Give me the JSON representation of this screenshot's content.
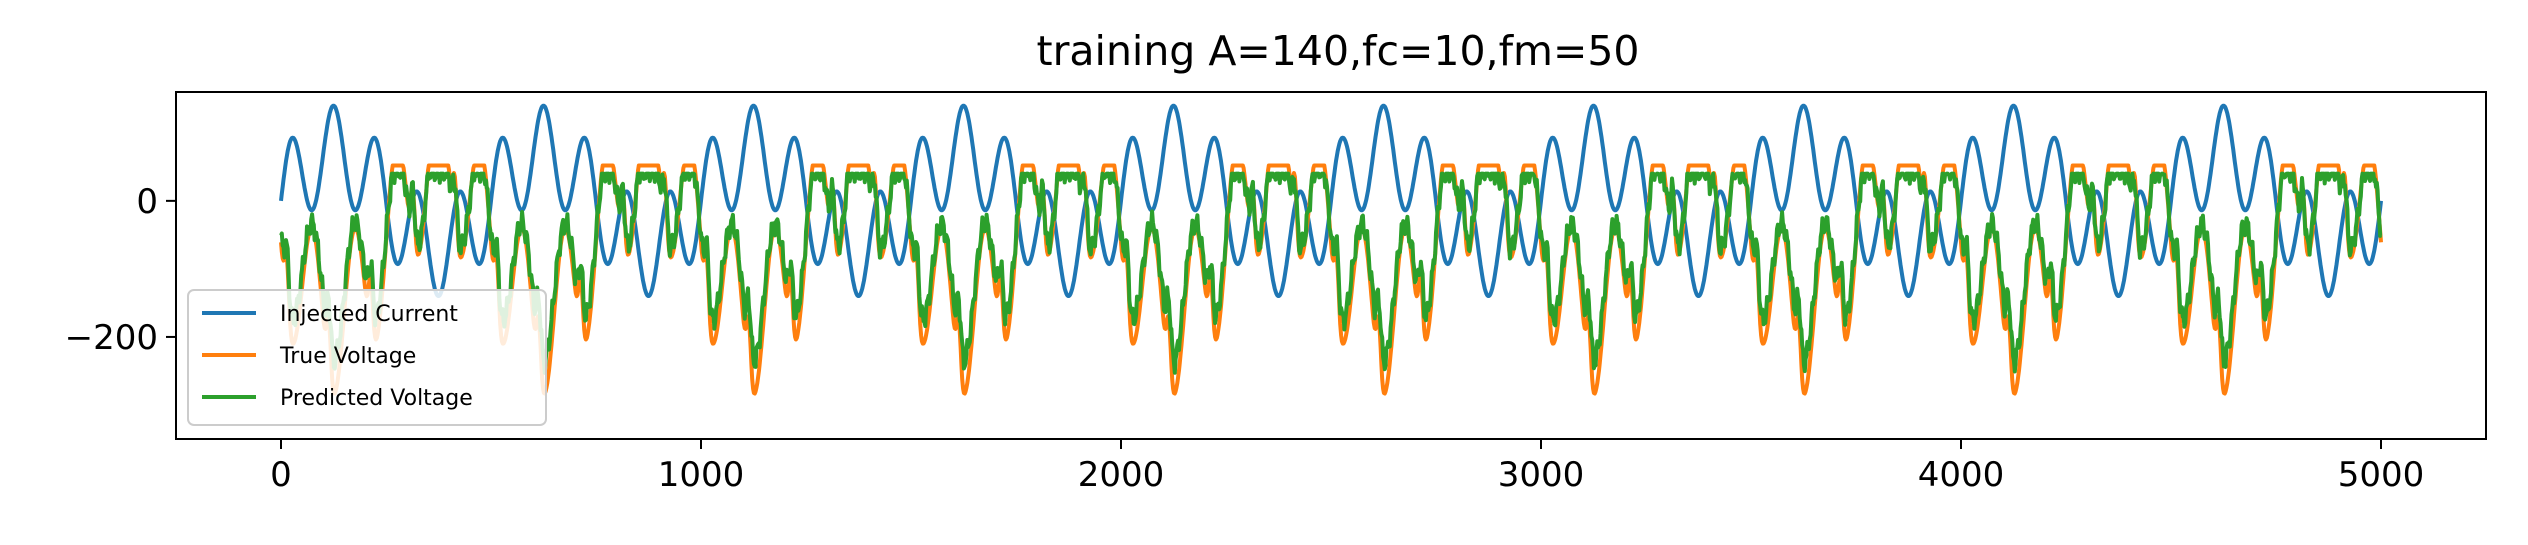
{
  "chart_data": {
    "type": "line",
    "title": "training A=140,fc=10,fm=50",
    "xlabel": "",
    "ylabel": "",
    "xlim": [
      -250,
      5250
    ],
    "ylim": [
      -350,
      160
    ],
    "xticks": [
      0,
      1000,
      2000,
      3000,
      4000,
      5000
    ],
    "xtick_labels": [
      "0",
      "1000",
      "2000",
      "3000",
      "4000",
      "5000"
    ],
    "yticks": [
      0,
      -200
    ],
    "ytick_labels": [
      "0",
      "−200"
    ],
    "grid": false,
    "legend_position": "lower-left",
    "series": [
      {
        "name": "Injected Current",
        "color": "#1f77b4",
        "model": "A/2*sin(2π*fc*t) + A/2*sin(2π*fm*t), t=i/5000 (approx.)",
        "params": {
          "A": 140,
          "fc": 10,
          "fm": 50,
          "n_samples": 5001,
          "x_start": 0,
          "x_end": 5000
        }
      },
      {
        "name": "True Voltage",
        "color": "#ff7f0e",
        "approx_range": [
          -325,
          52
        ]
      },
      {
        "name": "Predicted Voltage",
        "color": "#2ca02c",
        "approx_range": [
          -270,
          40
        ]
      }
    ]
  }
}
